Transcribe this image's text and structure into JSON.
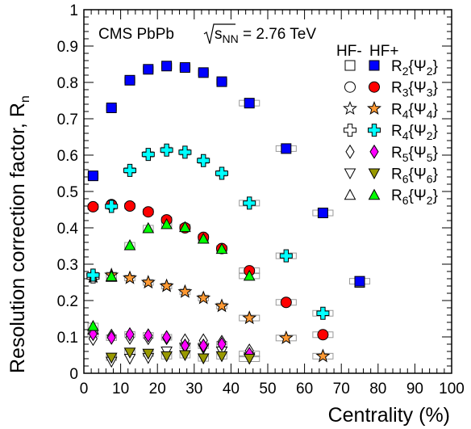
{
  "chart_data": {
    "type": "scatter",
    "annotation": {
      "prefix": "CMS PbPb ",
      "radicand": "s",
      "radicand_sub": "NN",
      "suffix": " = 2.76 TeV"
    },
    "xlabel": "Centrality (%)",
    "ylabel": "Resolution correction factor, R",
    "ylabel_sub": "n",
    "xlim": [
      0,
      100
    ],
    "ylim": [
      0,
      1
    ],
    "xticks": [
      "0",
      "10",
      "20",
      "30",
      "40",
      "50",
      "60",
      "70",
      "80",
      "90",
      "100"
    ],
    "yticks": [
      "0",
      "0.1",
      "0.2",
      "0.3",
      "0.4",
      "0.5",
      "0.6",
      "0.7",
      "0.8",
      "0.9",
      "1"
    ],
    "grid": false,
    "legend": {
      "placement": "top-right",
      "header_minus": "HF-",
      "header_plus": "HF+"
    },
    "series": [
      {
        "name": "R2{Ψ2}",
        "label_main": "R",
        "label_sub": "2",
        "label_brace": "{Ψ",
        "label_sub2": "2",
        "label_end": "}",
        "marker": "square",
        "color": "#0000ff",
        "points": [
          [
            2.5,
            0.543
          ],
          [
            7.5,
            0.73
          ],
          [
            12.5,
            0.806
          ],
          [
            17.5,
            0.836
          ],
          [
            22.5,
            0.845
          ],
          [
            27.5,
            0.841
          ],
          [
            32.5,
            0.827
          ],
          [
            37.5,
            0.802
          ],
          [
            45,
            0.743
          ],
          [
            55,
            0.618
          ],
          [
            65,
            0.441
          ],
          [
            75,
            0.253
          ]
        ]
      },
      {
        "name": "R3{Ψ3}",
        "label_main": "R",
        "label_sub": "3",
        "label_brace": "{Ψ",
        "label_sub2": "3",
        "label_end": "}",
        "marker": "circle",
        "color": "#ff0000",
        "points": [
          [
            2.5,
            0.458
          ],
          [
            7.5,
            0.463
          ],
          [
            12.5,
            0.46
          ],
          [
            17.5,
            0.444
          ],
          [
            22.5,
            0.422
          ],
          [
            27.5,
            0.4
          ],
          [
            32.5,
            0.374
          ],
          [
            37.5,
            0.343
          ],
          [
            45,
            0.282
          ],
          [
            55,
            0.195
          ],
          [
            65,
            0.106
          ]
        ]
      },
      {
        "name": "R4{Ψ4}",
        "label_main": "R",
        "label_sub": "4",
        "label_brace": "{Ψ",
        "label_sub2": "4",
        "label_end": "}",
        "marker": "star",
        "color": "#ff9933",
        "points": [
          [
            2.5,
            0.268
          ],
          [
            7.5,
            0.27
          ],
          [
            12.5,
            0.262
          ],
          [
            17.5,
            0.25
          ],
          [
            22.5,
            0.24
          ],
          [
            27.5,
            0.224
          ],
          [
            32.5,
            0.207
          ],
          [
            37.5,
            0.185
          ],
          [
            45,
            0.152
          ],
          [
            55,
            0.097
          ],
          [
            65,
            0.047
          ]
        ]
      },
      {
        "name": "R4{Ψ2}",
        "label_main": "R",
        "label_sub": "4",
        "label_brace": "{Ψ",
        "label_sub2": "2",
        "label_end": "}",
        "marker": "cross",
        "color": "#00ffff",
        "points": [
          [
            2.5,
            0.27
          ],
          [
            7.5,
            0.459
          ],
          [
            12.5,
            0.558
          ],
          [
            17.5,
            0.602
          ],
          [
            22.5,
            0.614
          ],
          [
            27.5,
            0.608
          ],
          [
            32.5,
            0.585
          ],
          [
            37.5,
            0.55
          ],
          [
            45,
            0.468
          ],
          [
            55,
            0.323
          ],
          [
            65,
            0.165
          ]
        ]
      },
      {
        "name": "R5{Ψ5}",
        "label_main": "R",
        "label_sub": "5",
        "label_brace": "{Ψ",
        "label_sub2": "5",
        "label_end": "}",
        "marker": "diamond",
        "color": "#ff00ff",
        "points": [
          [
            2.5,
            0.108
          ],
          [
            7.5,
            0.098
          ],
          [
            12.5,
            0.107
          ],
          [
            17.5,
            0.104
          ],
          [
            22.5,
            0.099
          ],
          [
            27.5,
            0.076
          ],
          [
            32.5,
            0.076
          ],
          [
            37.5,
            0.08
          ],
          [
            45,
            0.053
          ]
        ]
      },
      {
        "name": "R6{Ψ6}",
        "label_main": "R",
        "label_sub": "6",
        "label_brace": "{Ψ",
        "label_sub2": "6",
        "label_end": "}",
        "marker": "triangle-down",
        "color": "#999900",
        "points": [
          [
            7.5,
            0.043
          ],
          [
            12.5,
            0.057
          ],
          [
            17.5,
            0.054
          ],
          [
            22.5,
            0.047
          ],
          [
            27.5,
            0.05
          ],
          [
            32.5,
            0.041
          ],
          [
            37.5,
            0.047
          ],
          [
            45,
            0.04
          ]
        ]
      },
      {
        "name": "R6{Ψ2}",
        "label_main": "R",
        "label_sub": "6",
        "label_brace": "{Ψ",
        "label_sub2": "2",
        "label_end": "}",
        "marker": "triangle",
        "color": "#00ff00",
        "points": [
          [
            2.5,
            0.13
          ],
          [
            7.5,
            0.267
          ],
          [
            12.5,
            0.352
          ],
          [
            17.5,
            0.399
          ],
          [
            22.5,
            0.41
          ],
          [
            27.5,
            0.402
          ],
          [
            32.5,
            0.37
          ],
          [
            37.5,
            0.342
          ],
          [
            45,
            0.268
          ]
        ]
      }
    ],
    "hf_minus_overlay": {
      "R3": [
        [
          7.5,
          0.464
        ]
      ],
      "R4psi4": [
        [
          2.5,
          0.265
        ]
      ],
      "R4psi2": [
        [
          2.5,
          0.265
        ]
      ],
      "R5": [
        [
          2.5,
          0.095
        ],
        [
          7.5,
          0.103
        ],
        [
          12.5,
          0.098
        ],
        [
          17.5,
          0.097
        ],
        [
          22.5,
          0.097
        ],
        [
          27.5,
          0.09
        ],
        [
          32.5,
          0.09
        ],
        [
          37.5,
          0.086
        ],
        [
          45,
          0.062
        ]
      ],
      "R6psi6": [
        [
          7.5,
          0.032
        ],
        [
          12.5,
          0.04
        ],
        [
          17.5,
          0.042
        ],
        [
          22.5,
          0.06
        ],
        [
          27.5,
          0.07
        ],
        [
          32.5,
          0.068
        ],
        [
          37.5,
          0.06
        ],
        [
          45,
          0.044
        ]
      ],
      "R6psi2": [
        [
          2.5,
          0.12
        ],
        [
          7.5,
          0.265
        ]
      ],
      "R2": [
        [
          75,
          0.25
        ]
      ]
    }
  }
}
